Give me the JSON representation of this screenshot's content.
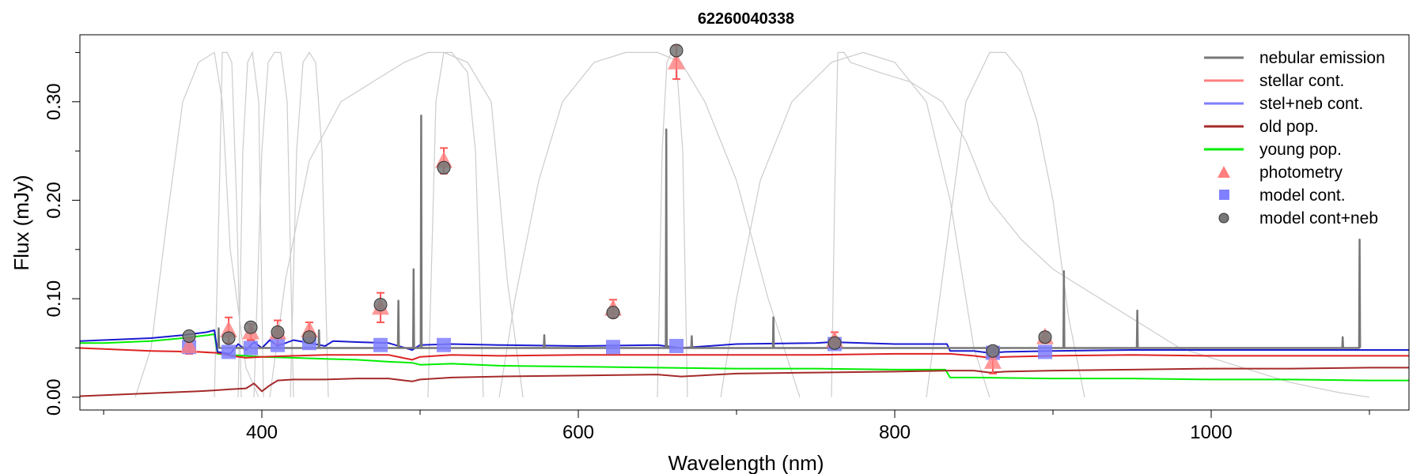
{
  "chart_data": {
    "type": "line",
    "title": "62260040338",
    "xlabel": "Wavelength (nm)",
    "ylabel": "Flux (mJy)",
    "xlim": [
      285,
      1125
    ],
    "ylim": [
      -0.013,
      0.368
    ],
    "x_ticks": [
      400,
      600,
      800,
      1000
    ],
    "x_tick_labels": [
      "400",
      "600",
      "800",
      "1000"
    ],
    "y_ticks": [
      0.0,
      0.1,
      0.2,
      0.3
    ],
    "y_tick_labels": [
      "0.00",
      "0.10",
      "0.20",
      "0.30"
    ],
    "y_minor_ticks": [
      0.05,
      0.15,
      0.25,
      0.35
    ],
    "legend_position": "top-right",
    "legend": [
      {
        "label": "nebular emission",
        "kind": "line",
        "color": "#777777"
      },
      {
        "label": "stellar cont.",
        "kind": "line",
        "color": "#ff7f7f"
      },
      {
        "label": "stel+neb cont.",
        "kind": "line",
        "color": "#7f7fff"
      },
      {
        "label": "old pop.",
        "kind": "line",
        "color": "#a52a2a"
      },
      {
        "label": "young pop.",
        "kind": "line",
        "color": "#00ee00"
      },
      {
        "label": "photometry",
        "kind": "triangle",
        "color": "#ff7f7f"
      },
      {
        "label": "model cont.",
        "kind": "square",
        "color": "#7f7fff"
      },
      {
        "label": "model cont+neb",
        "kind": "circle",
        "color": "#777777"
      }
    ],
    "series": [
      {
        "kind": "line",
        "color": "#00ee00",
        "x": [
          285,
          300,
          330,
          350,
          366,
          370,
          372,
          380,
          390,
          400,
          420,
          440,
          460,
          480,
          495,
          500,
          520,
          550,
          600,
          650,
          700,
          750,
          800,
          830,
          832,
          835,
          850,
          900,
          950,
          1000,
          1050,
          1100,
          1125
        ],
        "y": [
          0.055,
          0.055,
          0.057,
          0.06,
          0.063,
          0.064,
          0.044,
          0.043,
          0.042,
          0.041,
          0.04,
          0.039,
          0.038,
          0.036,
          0.035,
          0.033,
          0.034,
          0.032,
          0.031,
          0.03,
          0.029,
          0.029,
          0.028,
          0.028,
          0.028,
          0.02,
          0.02,
          0.019,
          0.019,
          0.018,
          0.018,
          0.017,
          0.017
        ]
      },
      {
        "kind": "line",
        "color": "#dd2222",
        "x": [
          285,
          300,
          330,
          360,
          372,
          380,
          390,
          400,
          420,
          440,
          460,
          480,
          495,
          500,
          520,
          550,
          600,
          650,
          700,
          750,
          800,
          835,
          850,
          860,
          870,
          900,
          950,
          1000,
          1050,
          1100,
          1125
        ],
        "y": [
          0.05,
          0.049,
          0.047,
          0.046,
          0.045,
          0.042,
          0.04,
          0.041,
          0.042,
          0.043,
          0.043,
          0.043,
          0.038,
          0.041,
          0.043,
          0.042,
          0.043,
          0.043,
          0.043,
          0.043,
          0.044,
          0.044,
          0.042,
          0.04,
          0.041,
          0.042,
          0.043,
          0.042,
          0.042,
          0.042,
          0.042
        ]
      },
      {
        "kind": "line",
        "color": "#a52a2a",
        "x": [
          285,
          300,
          330,
          360,
          370,
          380,
          390,
          395,
          400,
          405,
          410,
          420,
          440,
          460,
          480,
          495,
          500,
          520,
          550,
          600,
          650,
          665,
          700,
          750,
          800,
          835,
          850,
          860,
          870,
          900,
          950,
          1000,
          1050,
          1100,
          1125
        ],
        "y": [
          0.001,
          0.002,
          0.004,
          0.006,
          0.007,
          0.008,
          0.009,
          0.014,
          0.006,
          0.012,
          0.017,
          0.018,
          0.018,
          0.019,
          0.019,
          0.016,
          0.018,
          0.02,
          0.021,
          0.022,
          0.023,
          0.021,
          0.024,
          0.025,
          0.026,
          0.027,
          0.027,
          0.025,
          0.026,
          0.027,
          0.028,
          0.029,
          0.029,
          0.03,
          0.03
        ]
      },
      {
        "kind": "line",
        "color": "#1a1ad0",
        "x": [
          285,
          300,
          330,
          350,
          365,
          370,
          372,
          380,
          385,
          390,
          395,
          400,
          405,
          410,
          420,
          430,
          440,
          445,
          460,
          480,
          495,
          500,
          520,
          550,
          600,
          650,
          665,
          700,
          750,
          760,
          800,
          830,
          833,
          835,
          850,
          860,
          870,
          900,
          950,
          1000,
          1050,
          1100,
          1125
        ],
        "y": [
          0.057,
          0.058,
          0.06,
          0.063,
          0.066,
          0.068,
          0.046,
          0.044,
          0.054,
          0.048,
          0.056,
          0.05,
          0.058,
          0.052,
          0.058,
          0.055,
          0.052,
          0.057,
          0.056,
          0.055,
          0.048,
          0.053,
          0.054,
          0.053,
          0.052,
          0.053,
          0.05,
          0.054,
          0.055,
          0.056,
          0.054,
          0.054,
          0.054,
          0.047,
          0.047,
          0.045,
          0.046,
          0.047,
          0.048,
          0.048,
          0.048,
          0.048,
          0.048
        ]
      },
      {
        "kind": "line",
        "color": "#777777",
        "x": [
          372.4,
          372.7,
          373.0,
          435.8,
          436.1,
          436.4,
          486.0,
          486.3,
          486.6,
          495.6,
          495.9,
          496.2,
          500.4,
          500.7,
          501.0,
          578.2,
          578.5,
          578.8,
          655.3,
          655.6,
          655.9,
          656.3,
          656.6,
          656.9,
          671.4,
          671.7,
          672.0,
          723.0,
          723.3,
          723.6,
          906.6,
          906.9,
          907.2,
          953.0,
          953.3,
          953.6,
          1082.8,
          1083.1,
          1083.4,
          1093.5,
          1093.8,
          1094.1
        ],
        "y": [
          0.05,
          0.07,
          0.05,
          0.05,
          0.068,
          0.05,
          0.05,
          0.098,
          0.05,
          0.05,
          0.13,
          0.05,
          0.05,
          0.286,
          0.05,
          0.05,
          0.063,
          0.05,
          0.05,
          0.272,
          0.05,
          0.05,
          0.052,
          0.05,
          0.05,
          0.062,
          0.05,
          0.05,
          0.081,
          0.05,
          0.05,
          0.128,
          0.05,
          0.05,
          0.088,
          0.05,
          0.05,
          0.061,
          0.05,
          0.05,
          0.16,
          0.05
        ]
      }
    ],
    "photometry": {
      "x": [
        354,
        379,
        393,
        410,
        430,
        475,
        515,
        622,
        662,
        762,
        862,
        895
      ],
      "y": [
        0.052,
        0.068,
        0.066,
        0.066,
        0.068,
        0.091,
        0.24,
        0.09,
        0.34,
        0.058,
        0.036,
        0.061
      ],
      "err": [
        0.008,
        0.013,
        0.008,
        0.012,
        0.008,
        0.015,
        0.013,
        0.009,
        0.017,
        0.008,
        0.012,
        0.005
      ]
    },
    "model_cont": {
      "x": [
        354,
        379,
        393,
        410,
        430,
        475,
        515,
        622,
        662,
        762,
        862,
        895
      ],
      "y": [
        0.051,
        0.046,
        0.05,
        0.053,
        0.055,
        0.053,
        0.053,
        0.051,
        0.052,
        0.054,
        0.045,
        0.046
      ]
    },
    "model_cont_neb": {
      "x": [
        354,
        379,
        393,
        410,
        430,
        475,
        515,
        622,
        662,
        762,
        862,
        895
      ],
      "y": [
        0.062,
        0.06,
        0.071,
        0.066,
        0.061,
        0.094,
        0.233,
        0.086,
        0.352,
        0.055,
        0.047,
        0.061
      ]
    },
    "filter_curves": [
      {
        "x": [
          320,
          330,
          340,
          350,
          360,
          370,
          375,
          380,
          390,
          398
        ],
        "y": [
          0.0,
          0.05,
          0.18,
          0.3,
          0.34,
          0.35,
          0.3,
          0.15,
          0.03,
          0.0
        ]
      },
      {
        "x": [
          370,
          373,
          375,
          378,
          381,
          384,
          387
        ],
        "y": [
          0.0,
          0.2,
          0.35,
          0.35,
          0.34,
          0.2,
          0.0
        ]
      },
      {
        "x": [
          385,
          388,
          391,
          394,
          398,
          401
        ],
        "y": [
          0.0,
          0.25,
          0.34,
          0.35,
          0.3,
          0.0
        ]
      },
      {
        "x": [
          395,
          400,
          404,
          408,
          412,
          416,
          420
        ],
        "y": [
          0.0,
          0.25,
          0.34,
          0.35,
          0.35,
          0.3,
          0.0
        ]
      },
      {
        "x": [
          418,
          422,
          426,
          430,
          434,
          438,
          442
        ],
        "y": [
          0.0,
          0.25,
          0.34,
          0.35,
          0.34,
          0.25,
          0.0
        ]
      },
      {
        "x": [
          405,
          415,
          430,
          450,
          470,
          490,
          505,
          515,
          530,
          545,
          555,
          565
        ],
        "y": [
          0.0,
          0.12,
          0.24,
          0.3,
          0.32,
          0.34,
          0.35,
          0.35,
          0.34,
          0.3,
          0.12,
          0.0
        ]
      },
      {
        "x": [
          505,
          510,
          515,
          520,
          525,
          530,
          535,
          540
        ],
        "y": [
          0.0,
          0.3,
          0.35,
          0.35,
          0.34,
          0.33,
          0.25,
          0.0
        ]
      },
      {
        "x": [
          550,
          560,
          575,
          590,
          610,
          630,
          650,
          665,
          680,
          700,
          720,
          740
        ],
        "y": [
          0.0,
          0.1,
          0.22,
          0.3,
          0.34,
          0.35,
          0.35,
          0.34,
          0.3,
          0.22,
          0.1,
          0.0
        ]
      },
      {
        "x": [
          650,
          653,
          656,
          659,
          662,
          666,
          669
        ],
        "y": [
          0.0,
          0.25,
          0.34,
          0.35,
          0.34,
          0.25,
          0.0
        ]
      },
      {
        "x": [
          690,
          700,
          715,
          735,
          760,
          780,
          800,
          820,
          835,
          850,
          860
        ],
        "y": [
          0.0,
          0.1,
          0.22,
          0.3,
          0.34,
          0.35,
          0.34,
          0.3,
          0.2,
          0.05,
          0.0
        ]
      },
      {
        "x": [
          760,
          762,
          764,
          768,
          772,
          790,
          810,
          830,
          845,
          860,
          880,
          900,
          920,
          940,
          960,
          980,
          1000,
          1020,
          1050,
          1080,
          1100
        ],
        "y": [
          0.0,
          0.2,
          0.35,
          0.35,
          0.34,
          0.33,
          0.32,
          0.3,
          0.26,
          0.2,
          0.16,
          0.13,
          0.11,
          0.09,
          0.07,
          0.05,
          0.04,
          0.03,
          0.015,
          0.005,
          0.0
        ]
      },
      {
        "x": [
          820,
          830,
          845,
          860,
          870,
          880,
          890,
          900,
          910,
          920
        ],
        "y": [
          0.0,
          0.12,
          0.3,
          0.35,
          0.35,
          0.33,
          0.28,
          0.2,
          0.08,
          0.0
        ]
      }
    ]
  }
}
